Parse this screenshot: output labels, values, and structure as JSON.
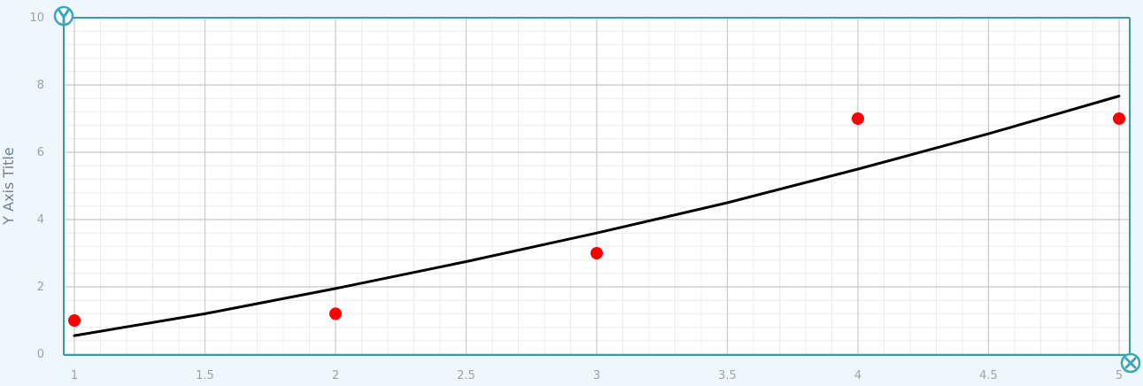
{
  "chart_data": {
    "type": "scatter",
    "title": "",
    "xlabel": "",
    "ylabel": "Y Axis Title",
    "xlim": [
      1,
      5
    ],
    "ylim": [
      0,
      10
    ],
    "x_ticks": [
      1,
      1.5,
      2,
      2.5,
      3,
      3.5,
      4,
      4.5,
      5
    ],
    "y_ticks": [
      0,
      2,
      4,
      6,
      8,
      10
    ],
    "grid": true,
    "minor_grid": true,
    "series": [
      {
        "type": "scatter",
        "color": "#ff0000",
        "points": [
          [
            1,
            1
          ],
          [
            2,
            1.2
          ],
          [
            3,
            3
          ],
          [
            4,
            7
          ],
          [
            5,
            7
          ]
        ]
      },
      {
        "type": "line",
        "color": "#000000",
        "points": [
          [
            1,
            0.55
          ],
          [
            1.5,
            1.2
          ],
          [
            2,
            1.95
          ],
          [
            2.5,
            2.75
          ],
          [
            3,
            3.6
          ],
          [
            3.5,
            4.5
          ],
          [
            4,
            5.5
          ],
          [
            4.5,
            6.55
          ],
          [
            5,
            7.67
          ]
        ]
      }
    ],
    "axis_icons": {
      "y": "y-letter-icon",
      "x": "x-letter-icon"
    },
    "axis_icon_color": "#3aa7b7",
    "frame_color": "#3a9aa8"
  }
}
